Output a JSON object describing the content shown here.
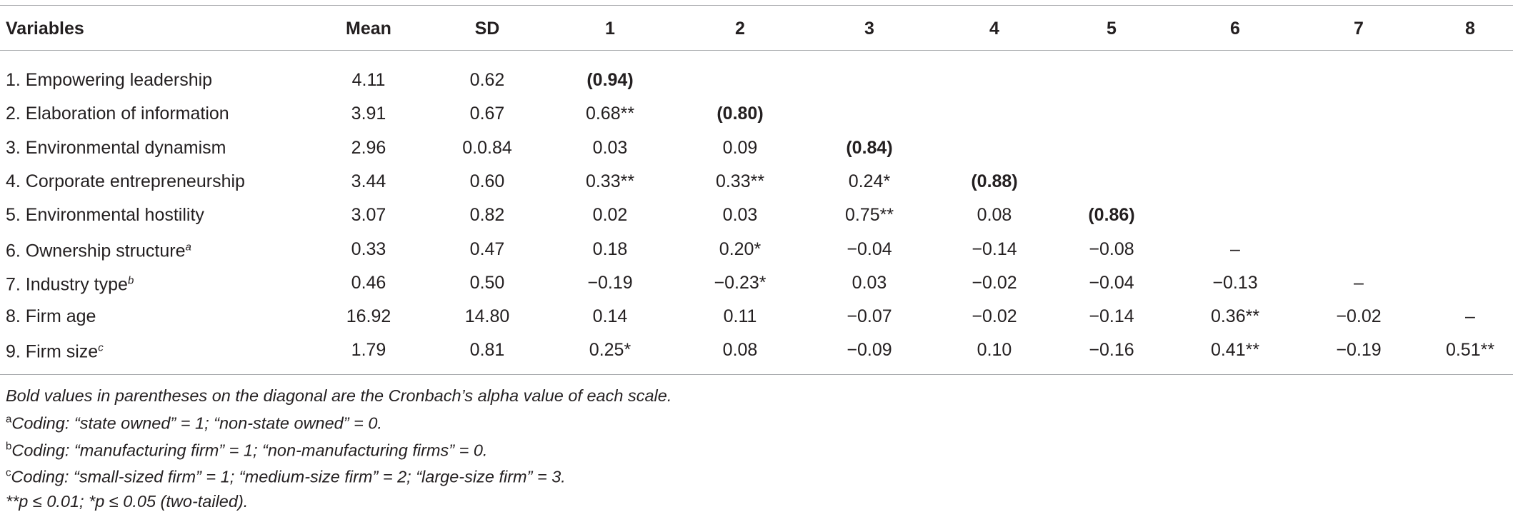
{
  "table": {
    "header": [
      "Variables",
      "Mean",
      "SD",
      "1",
      "2",
      "3",
      "4",
      "5",
      "6",
      "7",
      "8"
    ],
    "rows": [
      {
        "label": "1. Empowering leadership",
        "values": [
          "4.11",
          "0.62",
          "(0.94)"
        ]
      },
      {
        "label": "2. Elaboration of information",
        "values": [
          "3.91",
          "0.67",
          "0.68**",
          "(0.80)"
        ]
      },
      {
        "label": "3. Environmental dynamism",
        "values": [
          "2.96",
          "0.0.84",
          "0.03",
          "0.09",
          "(0.84)"
        ]
      },
      {
        "label": "4. Corporate entrepreneurship",
        "values": [
          "3.44",
          "0.60",
          "0.33**",
          "0.33**",
          "0.24*",
          "(0.88)"
        ]
      },
      {
        "label": "5. Environmental hostility",
        "values": [
          "3.07",
          "0.82",
          "0.02",
          "0.03",
          "0.75**",
          "0.08",
          "(0.86)"
        ]
      },
      {
        "label": "6. Ownership structure",
        "sup": "a",
        "values": [
          "0.33",
          "0.47",
          "0.18",
          "0.20*",
          "−0.04",
          "−0.14",
          "−0.08",
          "–"
        ]
      },
      {
        "label": "7. Industry type",
        "sup": "b",
        "values": [
          "0.46",
          "0.50",
          "−0.19",
          "−0.23*",
          "0.03",
          "−0.02",
          "−0.04",
          "−0.13",
          "–"
        ]
      },
      {
        "label": "8. Firm age",
        "values": [
          "16.92",
          "14.80",
          "0.14",
          "0.11",
          "−0.07",
          "−0.02",
          "−0.14",
          "0.36**",
          "−0.02",
          "–"
        ]
      },
      {
        "label": "9. Firm size",
        "sup": "c",
        "values": [
          "1.79",
          "0.81",
          "0.25*",
          "0.08",
          "−0.09",
          "0.10",
          "−0.16",
          "0.41**",
          "−0.19",
          "0.51**"
        ]
      }
    ],
    "notes": [
      {
        "text": "Bold values in parentheses on the diagonal are the Cronbach’s alpha value of each scale."
      },
      {
        "sup": "a",
        "text": "Coding: “state owned” = 1; “non-state owned” = 0."
      },
      {
        "sup": "b",
        "text": "Coding: “manufacturing firm” = 1; “non-manufacturing firms” = 0."
      },
      {
        "sup": "c",
        "text": "Coding: “small-sized firm” = 1; “medium-size firm” = 2; “large-size firm” = 3."
      },
      {
        "text": "**p ≤ 0.01; *p ≤ 0.05 (two-tailed)."
      }
    ]
  }
}
